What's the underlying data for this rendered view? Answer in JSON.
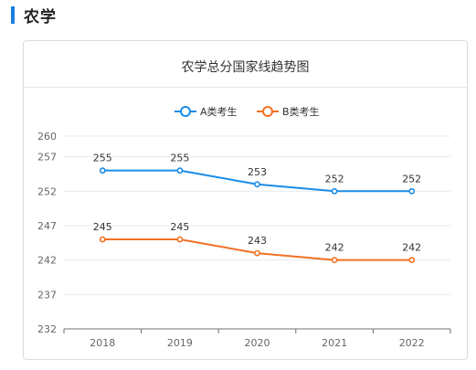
{
  "section": {
    "title": "农学"
  },
  "chart_data": {
    "type": "line",
    "title": "农学总分国家线趋势图",
    "categories": [
      "2018",
      "2019",
      "2020",
      "2021",
      "2022"
    ],
    "series": [
      {
        "name": "A类考生",
        "color": "#1a8ce6",
        "values": [
          255,
          255,
          253,
          252,
          252
        ]
      },
      {
        "name": "B类考生",
        "color": "#f27022",
        "values": [
          245,
          245,
          243,
          242,
          242
        ]
      }
    ],
    "yticks": [
      232,
      237,
      242,
      247,
      252,
      257,
      260
    ],
    "ylim": [
      232,
      260
    ],
    "xlabel": "",
    "ylabel": "",
    "grid": true,
    "legend": "top-center"
  }
}
